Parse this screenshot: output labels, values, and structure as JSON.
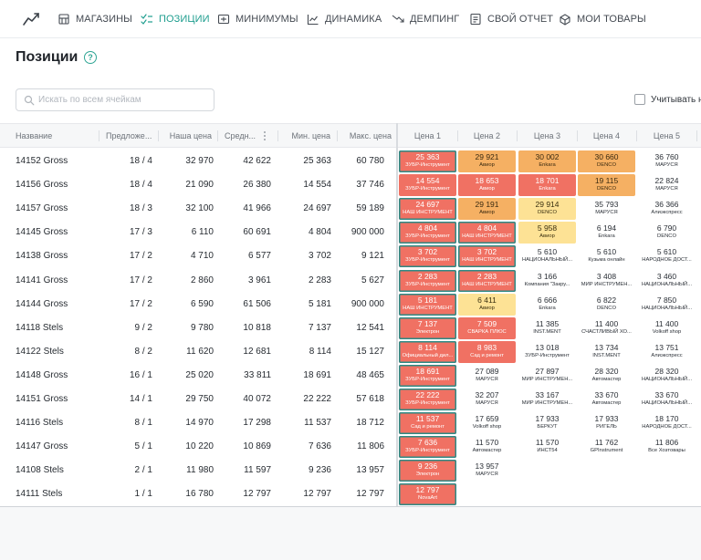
{
  "nav": {
    "items": [
      {
        "label": "МАГАЗИНЫ",
        "icon": "store-icon"
      },
      {
        "label": "ПОЗИЦИИ",
        "icon": "positions-icon",
        "active": true
      },
      {
        "label": "МИНИМУМЫ",
        "icon": "minimums-icon"
      },
      {
        "label": "ДИНАМИКА",
        "icon": "dynamics-icon"
      },
      {
        "label": "ДЕМПИНГ",
        "icon": "dumping-icon"
      },
      {
        "label": "СВОЙ ОТЧЕТ",
        "icon": "report-icon"
      },
      {
        "label": "МОИ ТОВАРЫ",
        "icon": "my-goods-icon"
      }
    ],
    "accent": "#1f9e8f"
  },
  "page": {
    "title": "Позиции",
    "help": "?"
  },
  "search": {
    "placeholder": "Искать по всем ячейкам",
    "value": ""
  },
  "option": {
    "label": "Учитывать на"
  },
  "table": {
    "headers": {
      "name": "Название",
      "offers": "Предложе...",
      "our_price": "Наша цена",
      "avg": "Средн...",
      "min": "Мин. цена",
      "max": "Макс. цена",
      "prices": [
        "Цена 1",
        "Цена 2",
        "Цена 3",
        "Цена 4",
        "Цена 5"
      ]
    },
    "colors": {
      "red": "#f07163",
      "orange": "#f5b063",
      "yellow": "#fde295",
      "outline": "#2d8b86"
    },
    "rows": [
      {
        "name": "14152 Gross",
        "offers": "18 / 4",
        "our": "32 970",
        "avg": "42 622",
        "min": "25 363",
        "max": "60 780",
        "prices": [
          {
            "v": "25 363",
            "s": "ЗУБР-Инструмент",
            "c": "red",
            "o": true
          },
          {
            "v": "29 921",
            "s": "Авиор",
            "c": "orange",
            "o": false
          },
          {
            "v": "30 002",
            "s": "Enkara",
            "c": "orange",
            "o": false
          },
          {
            "v": "30 660",
            "s": "DENCO",
            "c": "orange",
            "o": false
          },
          {
            "v": "36 760",
            "s": "МАРУСЯ",
            "c": "none",
            "o": false
          }
        ]
      },
      {
        "name": "14156 Gross",
        "offers": "18 / 4",
        "our": "21 090",
        "avg": "26 380",
        "min": "14 554",
        "max": "37 746",
        "prices": [
          {
            "v": "14 554",
            "s": "ЗУБР-Инструмент",
            "c": "red",
            "o": false
          },
          {
            "v": "18 653",
            "s": "Авиор",
            "c": "red",
            "o": false
          },
          {
            "v": "18 701",
            "s": "Enkara",
            "c": "red",
            "o": false
          },
          {
            "v": "19 115",
            "s": "DENCO",
            "c": "orange",
            "o": false
          },
          {
            "v": "22 824",
            "s": "МАРУСЯ",
            "c": "none",
            "o": false
          }
        ]
      },
      {
        "name": "14157 Gross",
        "offers": "18 / 3",
        "our": "32 100",
        "avg": "41 966",
        "min": "24 697",
        "max": "59 189",
        "prices": [
          {
            "v": "24 697",
            "s": "НАШ ИНСТРУМЕНТ",
            "c": "red",
            "o": true
          },
          {
            "v": "29 191",
            "s": "Авиор",
            "c": "orange",
            "o": false
          },
          {
            "v": "29 914",
            "s": "DENCO",
            "c": "yellow",
            "o": false
          },
          {
            "v": "35 793",
            "s": "МАРУСЯ",
            "c": "none",
            "o": false
          },
          {
            "v": "36 366",
            "s": "Алиэкспресс",
            "c": "none",
            "o": false
          }
        ]
      },
      {
        "name": "14145 Gross",
        "offers": "17 / 3",
        "our": "6 110",
        "avg": "60 691",
        "min": "4 804",
        "max": "900 000",
        "prices": [
          {
            "v": "4 804",
            "s": "ЗУБР-Инструмент",
            "c": "red",
            "o": true
          },
          {
            "v": "4 804",
            "s": "НАШ ИНСТРУМЕНТ",
            "c": "red",
            "o": true
          },
          {
            "v": "5 958",
            "s": "Авиор",
            "c": "yellow",
            "o": false
          },
          {
            "v": "6 194",
            "s": "Enkara",
            "c": "none",
            "o": false
          },
          {
            "v": "6 790",
            "s": "DENCO",
            "c": "none",
            "o": false
          }
        ]
      },
      {
        "name": "14138 Gross",
        "offers": "17 / 2",
        "our": "4 710",
        "avg": "6 577",
        "min": "3 702",
        "max": "9 121",
        "prices": [
          {
            "v": "3 702",
            "s": "ЗУБР-Инструмент",
            "c": "red",
            "o": true
          },
          {
            "v": "3 702",
            "s": "НАШ ИНСТРУМЕНТ",
            "c": "red",
            "o": true
          },
          {
            "v": "5 610",
            "s": "НАЦИОНАЛЬНЫЙ...",
            "c": "none",
            "o": false
          },
          {
            "v": "5 610",
            "s": "Кузьма онлайн",
            "c": "none",
            "o": false
          },
          {
            "v": "5 610",
            "s": "НАРОДНОЕ ДОСТ...",
            "c": "none",
            "o": false
          }
        ]
      },
      {
        "name": "14141 Gross",
        "offers": "17 / 2",
        "our": "2 860",
        "avg": "3 961",
        "min": "2 283",
        "max": "5 627",
        "prices": [
          {
            "v": "2 283",
            "s": "ЗУБР-Инструмент",
            "c": "red",
            "o": true
          },
          {
            "v": "2 283",
            "s": "НАШ ИНСТРУМЕНТ",
            "c": "red",
            "o": true
          },
          {
            "v": "3 166",
            "s": "Компания \"Закру...",
            "c": "none",
            "o": false
          },
          {
            "v": "3 408",
            "s": "МИР ИНСТРУМЕН...",
            "c": "none",
            "o": false
          },
          {
            "v": "3 460",
            "s": "НАЦИОНАЛЬНЫЙ...",
            "c": "none",
            "o": false
          }
        ]
      },
      {
        "name": "14144 Gross",
        "offers": "17 / 2",
        "our": "6 590",
        "avg": "61 506",
        "min": "5 181",
        "max": "900 000",
        "prices": [
          {
            "v": "5 181",
            "s": "НАШ ИНСТРУМЕНТ",
            "c": "red",
            "o": true
          },
          {
            "v": "6 411",
            "s": "Авиор",
            "c": "yellow",
            "o": false
          },
          {
            "v": "6 666",
            "s": "Enkara",
            "c": "none",
            "o": false
          },
          {
            "v": "6 822",
            "s": "DENCO",
            "c": "none",
            "o": false
          },
          {
            "v": "7 850",
            "s": "НАЦИОНАЛЬНЫЙ...",
            "c": "none",
            "o": false
          }
        ]
      },
      {
        "name": "14118 Stels",
        "offers": "9 / 2",
        "our": "9 780",
        "avg": "10 818",
        "min": "7 137",
        "max": "12 541",
        "prices": [
          {
            "v": "7 137",
            "s": "Электрон",
            "c": "red",
            "o": true
          },
          {
            "v": "7 509",
            "s": "СВАРКА ПЛЮС",
            "c": "red",
            "o": false
          },
          {
            "v": "11 385",
            "s": "INST.MENT",
            "c": "none",
            "o": false
          },
          {
            "v": "11 400",
            "s": "СЧАСТЛИВЫЙ ХО...",
            "c": "none",
            "o": false
          },
          {
            "v": "11 400",
            "s": "Volkoff shop",
            "c": "none",
            "o": false
          }
        ]
      },
      {
        "name": "14122 Stels",
        "offers": "8 / 2",
        "our": "11 620",
        "avg": "12 681",
        "min": "8 114",
        "max": "15 127",
        "prices": [
          {
            "v": "8 114",
            "s": "Официальный дил...",
            "c": "red",
            "o": true
          },
          {
            "v": "8 983",
            "s": "Сад и ремонт",
            "c": "red",
            "o": false
          },
          {
            "v": "13 018",
            "s": "ЗУБР-Инструмент",
            "c": "none",
            "o": false
          },
          {
            "v": "13 734",
            "s": "INST.MENT",
            "c": "none",
            "o": false
          },
          {
            "v": "13 751",
            "s": "Алиэкспресс",
            "c": "none",
            "o": false
          }
        ]
      },
      {
        "name": "14148 Gross",
        "offers": "16 / 1",
        "our": "25 020",
        "avg": "33 811",
        "min": "18 691",
        "max": "48 465",
        "prices": [
          {
            "v": "18 691",
            "s": "ЗУБР-Инструмент",
            "c": "red",
            "o": true
          },
          {
            "v": "27 089",
            "s": "МАРУСЯ",
            "c": "none",
            "o": false
          },
          {
            "v": "27 897",
            "s": "МИР ИНСТРУМЕН...",
            "c": "none",
            "o": false
          },
          {
            "v": "28 320",
            "s": "Автомастер",
            "c": "none",
            "o": false
          },
          {
            "v": "28 320",
            "s": "НАЦИОНАЛЬНЫЙ...",
            "c": "none",
            "o": false
          }
        ]
      },
      {
        "name": "14151 Gross",
        "offers": "14 / 1",
        "our": "29 750",
        "avg": "40 072",
        "min": "22 222",
        "max": "57 618",
        "prices": [
          {
            "v": "22 222",
            "s": "ЗУБР-Инструмент",
            "c": "red",
            "o": true
          },
          {
            "v": "32 207",
            "s": "МАРУСЯ",
            "c": "none",
            "o": false
          },
          {
            "v": "33 167",
            "s": "МИР ИНСТРУМЕН...",
            "c": "none",
            "o": false
          },
          {
            "v": "33 670",
            "s": "Автомастер",
            "c": "none",
            "o": false
          },
          {
            "v": "33 670",
            "s": "НАЦИОНАЛЬНЫЙ...",
            "c": "none",
            "o": false
          }
        ]
      },
      {
        "name": "14116 Stels",
        "offers": "8 / 1",
        "our": "14 970",
        "avg": "17 298",
        "min": "11 537",
        "max": "18 712",
        "prices": [
          {
            "v": "11 537",
            "s": "Сад и ремонт",
            "c": "red",
            "o": true
          },
          {
            "v": "17 659",
            "s": "Volkoff shop",
            "c": "none",
            "o": false
          },
          {
            "v": "17 933",
            "s": "БЕРКУТ",
            "c": "none",
            "o": false
          },
          {
            "v": "17 933",
            "s": "РИГЕЛЬ",
            "c": "none",
            "o": false
          },
          {
            "v": "18 170",
            "s": "НАРОДНОЕ ДОСТ...",
            "c": "none",
            "o": false
          }
        ]
      },
      {
        "name": "14147 Gross",
        "offers": "5 / 1",
        "our": "10 220",
        "avg": "10 869",
        "min": "7 636",
        "max": "11 806",
        "prices": [
          {
            "v": "7 636",
            "s": "ЗУБР-Инструмент",
            "c": "red",
            "o": true
          },
          {
            "v": "11 570",
            "s": "Автомастер",
            "c": "none",
            "o": false
          },
          {
            "v": "11 570",
            "s": "ИНСТ54",
            "c": "none",
            "o": false
          },
          {
            "v": "11 762",
            "s": "GPInstrument",
            "c": "none",
            "o": false
          },
          {
            "v": "11 806",
            "s": "Все Хозтовары",
            "c": "none",
            "o": false
          }
        ]
      },
      {
        "name": "14108 Stels",
        "offers": "2 / 1",
        "our": "11 980",
        "avg": "11 597",
        "min": "9 236",
        "max": "13 957",
        "prices": [
          {
            "v": "9 236",
            "s": "Электрон",
            "c": "red",
            "o": true
          },
          {
            "v": "13 957",
            "s": "МАРУСЯ",
            "c": "none",
            "o": false
          }
        ]
      },
      {
        "name": "14111 Stels",
        "offers": "1 / 1",
        "our": "16 780",
        "avg": "12 797",
        "min": "12 797",
        "max": "12 797",
        "prices": [
          {
            "v": "12 797",
            "s": "NovaArt",
            "c": "red",
            "o": true
          }
        ]
      }
    ]
  }
}
